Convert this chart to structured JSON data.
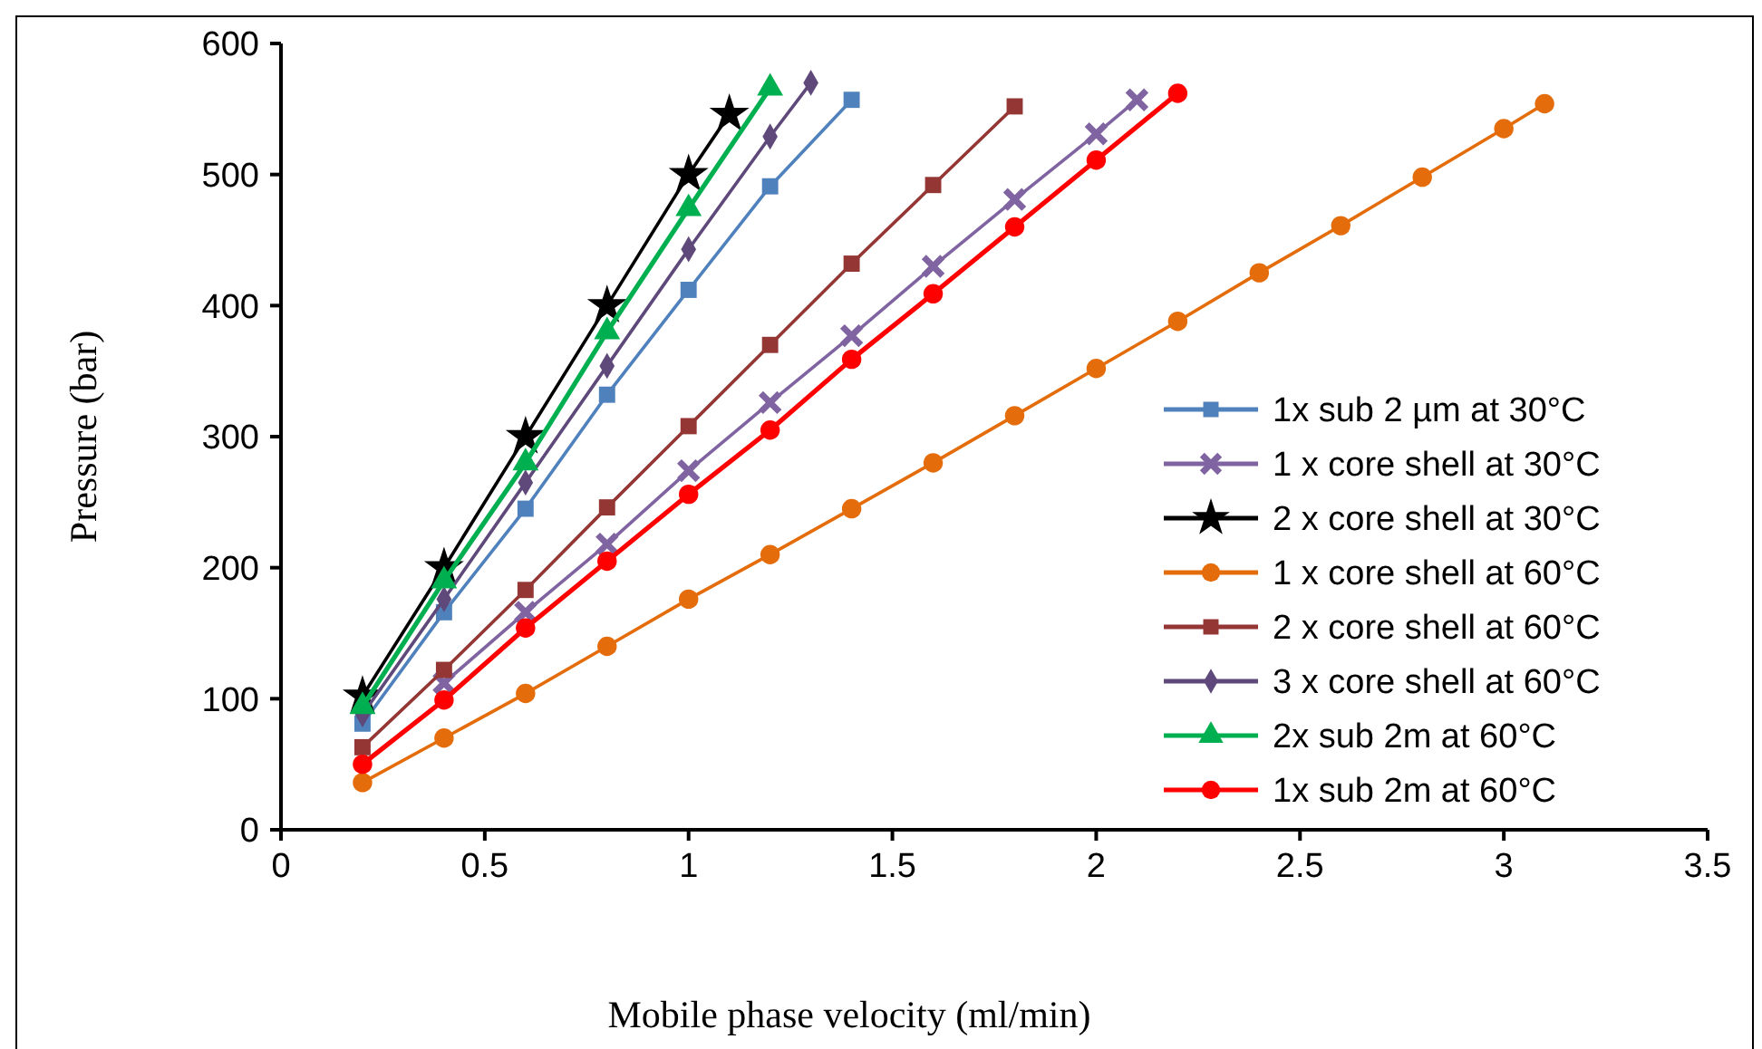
{
  "chart_data": {
    "type": "line",
    "xlabel": "Mobile phase velocity (ml/min)",
    "ylabel": "Pressure (bar)",
    "xlim": [
      0,
      3.5
    ],
    "xticks": [
      0,
      0.5,
      1,
      1.5,
      2,
      2.5,
      3,
      3.5
    ],
    "ylim": [
      0,
      600
    ],
    "yticks": [
      0,
      100,
      200,
      300,
      400,
      500,
      600
    ],
    "grid": false,
    "legend": "right",
    "line_style": "solid",
    "series": [
      {
        "name": "1x sub 2 µm at 30°C",
        "color": "#4f81bd",
        "marker": "square",
        "x": [
          0.2,
          0.4,
          0.6,
          0.8,
          1.0,
          1.2,
          1.4
        ],
        "values": [
          81,
          166,
          245,
          332,
          412,
          491,
          557
        ]
      },
      {
        "name": "1 x core shell at 30°C",
        "color": "#8064a2",
        "marker": "cross",
        "x": [
          0.4,
          0.6,
          0.8,
          1.0,
          1.2,
          1.4,
          1.6,
          1.8,
          2.0,
          2.1
        ],
        "values": [
          112,
          166,
          218,
          274,
          326,
          377,
          430,
          481,
          531,
          557
        ]
      },
      {
        "name": "2 x core shell at 30°C",
        "color": "#000000",
        "marker": "star",
        "x": [
          0.2,
          0.4,
          0.6,
          0.8,
          1.0,
          1.1
        ],
        "values": [
          102,
          200,
          300,
          400,
          500,
          546
        ]
      },
      {
        "name": "1 x core shell at 60°C",
        "color": "#e46c0a",
        "marker": "circle",
        "x": [
          0.2,
          0.4,
          0.6,
          0.8,
          1.0,
          1.2,
          1.4,
          1.6,
          1.8,
          2.0,
          2.2,
          2.4,
          2.6,
          2.8,
          3.0,
          3.1
        ],
        "values": [
          36,
          70,
          104,
          140,
          176,
          210,
          245,
          280,
          316,
          352,
          388,
          425,
          461,
          498,
          535,
          554
        ]
      },
      {
        "name": "2 x core shell at 60°C",
        "color": "#943634",
        "marker": "square",
        "x": [
          0.2,
          0.4,
          0.6,
          0.8,
          1.0,
          1.2,
          1.4,
          1.6,
          1.8
        ],
        "values": [
          63,
          122,
          183,
          246,
          308,
          370,
          432,
          492,
          552
        ]
      },
      {
        "name": "3 x core shell at 60°C",
        "color": "#5f497a",
        "marker": "diamond",
        "x": [
          0.2,
          0.4,
          0.6,
          0.8,
          1.0,
          1.2,
          1.3
        ],
        "values": [
          88,
          176,
          265,
          354,
          443,
          529,
          570
        ]
      },
      {
        "name": "2x sub 2m at 60°C",
        "color": "#00b050",
        "marker": "triangle",
        "x": [
          0.2,
          0.4,
          0.6,
          0.8,
          1.0,
          1.2
        ],
        "values": [
          94,
          190,
          280,
          380,
          474,
          566
        ]
      },
      {
        "name": "1x sub 2m at 60°C",
        "color": "#ff0000",
        "marker": "circle",
        "x": [
          0.2,
          0.4,
          0.6,
          0.8,
          1.0,
          1.2,
          1.4,
          1.6,
          1.8,
          2.0,
          2.2
        ],
        "values": [
          50,
          99,
          154,
          205,
          256,
          305,
          359,
          409,
          460,
          511,
          562
        ]
      }
    ]
  }
}
